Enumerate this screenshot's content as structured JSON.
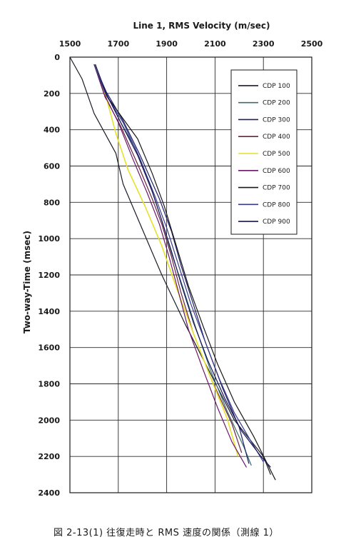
{
  "caption": "図 2-13(1) 往復走時と RMS 速度の関係（測線 1）",
  "chart_data": {
    "type": "line",
    "title": "Line 1, RMS Velocity (m/sec)",
    "xlabel": "",
    "ylabel": "Two-way-Time (msec)",
    "xlim": [
      1500,
      2500
    ],
    "ylim": [
      0,
      2400
    ],
    "y_inverted": true,
    "x_axis_position": "top",
    "x_ticks": [
      "1500",
      "1700",
      "1900",
      "2100",
      "2300",
      "2500"
    ],
    "y_ticks": [
      "0",
      "200",
      "400",
      "600",
      "800",
      "1000",
      "1200",
      "1400",
      "1600",
      "1800",
      "2000",
      "2200",
      "2400"
    ],
    "grid": true,
    "legend_position": "top-right",
    "series": [
      {
        "name": "CDP 100",
        "color": "#1c1c28",
        "points": [
          [
            1500,
            0
          ],
          [
            1550,
            120
          ],
          [
            1600,
            310
          ],
          [
            1690,
            530
          ],
          [
            1720,
            700
          ],
          [
            1800,
            950
          ],
          [
            1880,
            1200
          ],
          [
            1980,
            1480
          ],
          [
            2080,
            1740
          ],
          [
            2180,
            2000
          ],
          [
            2300,
            2200
          ],
          [
            2330,
            2300
          ]
        ]
      },
      {
        "name": "CDP 200",
        "color": "#3a6e6e",
        "points": [
          [
            1600,
            40
          ],
          [
            1650,
            200
          ],
          [
            1710,
            360
          ],
          [
            1770,
            500
          ],
          [
            1830,
            700
          ],
          [
            1880,
            900
          ],
          [
            1920,
            1080
          ],
          [
            1970,
            1280
          ],
          [
            2020,
            1490
          ],
          [
            2080,
            1720
          ],
          [
            2150,
            1950
          ],
          [
            2220,
            2150
          ],
          [
            2250,
            2250
          ]
        ]
      },
      {
        "name": "CDP 300",
        "color": "#1e1e66",
        "points": [
          [
            1600,
            40
          ],
          [
            1650,
            190
          ],
          [
            1720,
            350
          ],
          [
            1790,
            540
          ],
          [
            1870,
            780
          ],
          [
            1920,
            960
          ],
          [
            1960,
            1150
          ],
          [
            2010,
            1360
          ],
          [
            2060,
            1570
          ],
          [
            2130,
            1820
          ],
          [
            2200,
            2040
          ],
          [
            2240,
            2240
          ]
        ]
      },
      {
        "name": "CDP 400",
        "color": "#6a2040",
        "points": [
          [
            1605,
            40
          ],
          [
            1645,
            220
          ],
          [
            1710,
            380
          ],
          [
            1790,
            620
          ],
          [
            1840,
            780
          ],
          [
            1880,
            920
          ],
          [
            1920,
            1100
          ],
          [
            1960,
            1300
          ],
          [
            2010,
            1520
          ],
          [
            2080,
            1760
          ],
          [
            2170,
            2020
          ],
          [
            2210,
            2180
          ]
        ]
      },
      {
        "name": "CDP 500",
        "color": "#e6e22a",
        "points": [
          [
            1605,
            40
          ],
          [
            1650,
            220
          ],
          [
            1690,
            420
          ],
          [
            1740,
            620
          ],
          [
            1810,
            820
          ],
          [
            1880,
            1040
          ],
          [
            1940,
            1270
          ],
          [
            2010,
            1520
          ],
          [
            2080,
            1760
          ],
          [
            2150,
            1990
          ],
          [
            2195,
            2200
          ]
        ]
      },
      {
        "name": "CDP 600",
        "color": "#6a186a",
        "points": [
          [
            1600,
            40
          ],
          [
            1640,
            200
          ],
          [
            1700,
            360
          ],
          [
            1760,
            560
          ],
          [
            1820,
            750
          ],
          [
            1870,
            920
          ],
          [
            1910,
            1100
          ],
          [
            1950,
            1300
          ],
          [
            1990,
            1500
          ],
          [
            2050,
            1720
          ],
          [
            2110,
            1930
          ],
          [
            2170,
            2120
          ],
          [
            2230,
            2260
          ]
        ]
      },
      {
        "name": "CDP 700",
        "color": "#181818",
        "points": [
          [
            1600,
            40
          ],
          [
            1650,
            210
          ],
          [
            1720,
            340
          ],
          [
            1780,
            450
          ],
          [
            1840,
            640
          ],
          [
            1890,
            820
          ],
          [
            1940,
            1040
          ],
          [
            1990,
            1260
          ],
          [
            2050,
            1480
          ],
          [
            2110,
            1690
          ],
          [
            2180,
            1900
          ],
          [
            2260,
            2090
          ],
          [
            2350,
            2330
          ]
        ]
      },
      {
        "name": "CDP 800",
        "color": "#3a3a8a",
        "points": [
          [
            1600,
            40
          ],
          [
            1650,
            210
          ],
          [
            1720,
            360
          ],
          [
            1790,
            560
          ],
          [
            1850,
            760
          ],
          [
            1900,
            940
          ],
          [
            1950,
            1150
          ],
          [
            2000,
            1360
          ],
          [
            2060,
            1570
          ],
          [
            2120,
            1780
          ],
          [
            2180,
            1960
          ],
          [
            2250,
            2120
          ],
          [
            2300,
            2230
          ]
        ]
      },
      {
        "name": "CDP 900",
        "color": "#14145a",
        "points": [
          [
            1605,
            40
          ],
          [
            1650,
            200
          ],
          [
            1710,
            360
          ],
          [
            1780,
            540
          ],
          [
            1840,
            740
          ],
          [
            1880,
            900
          ],
          [
            1920,
            1070
          ],
          [
            1960,
            1250
          ],
          [
            2010,
            1460
          ],
          [
            2070,
            1670
          ],
          [
            2140,
            1880
          ],
          [
            2210,
            2060
          ],
          [
            2290,
            2200
          ],
          [
            2330,
            2260
          ]
        ]
      }
    ]
  }
}
